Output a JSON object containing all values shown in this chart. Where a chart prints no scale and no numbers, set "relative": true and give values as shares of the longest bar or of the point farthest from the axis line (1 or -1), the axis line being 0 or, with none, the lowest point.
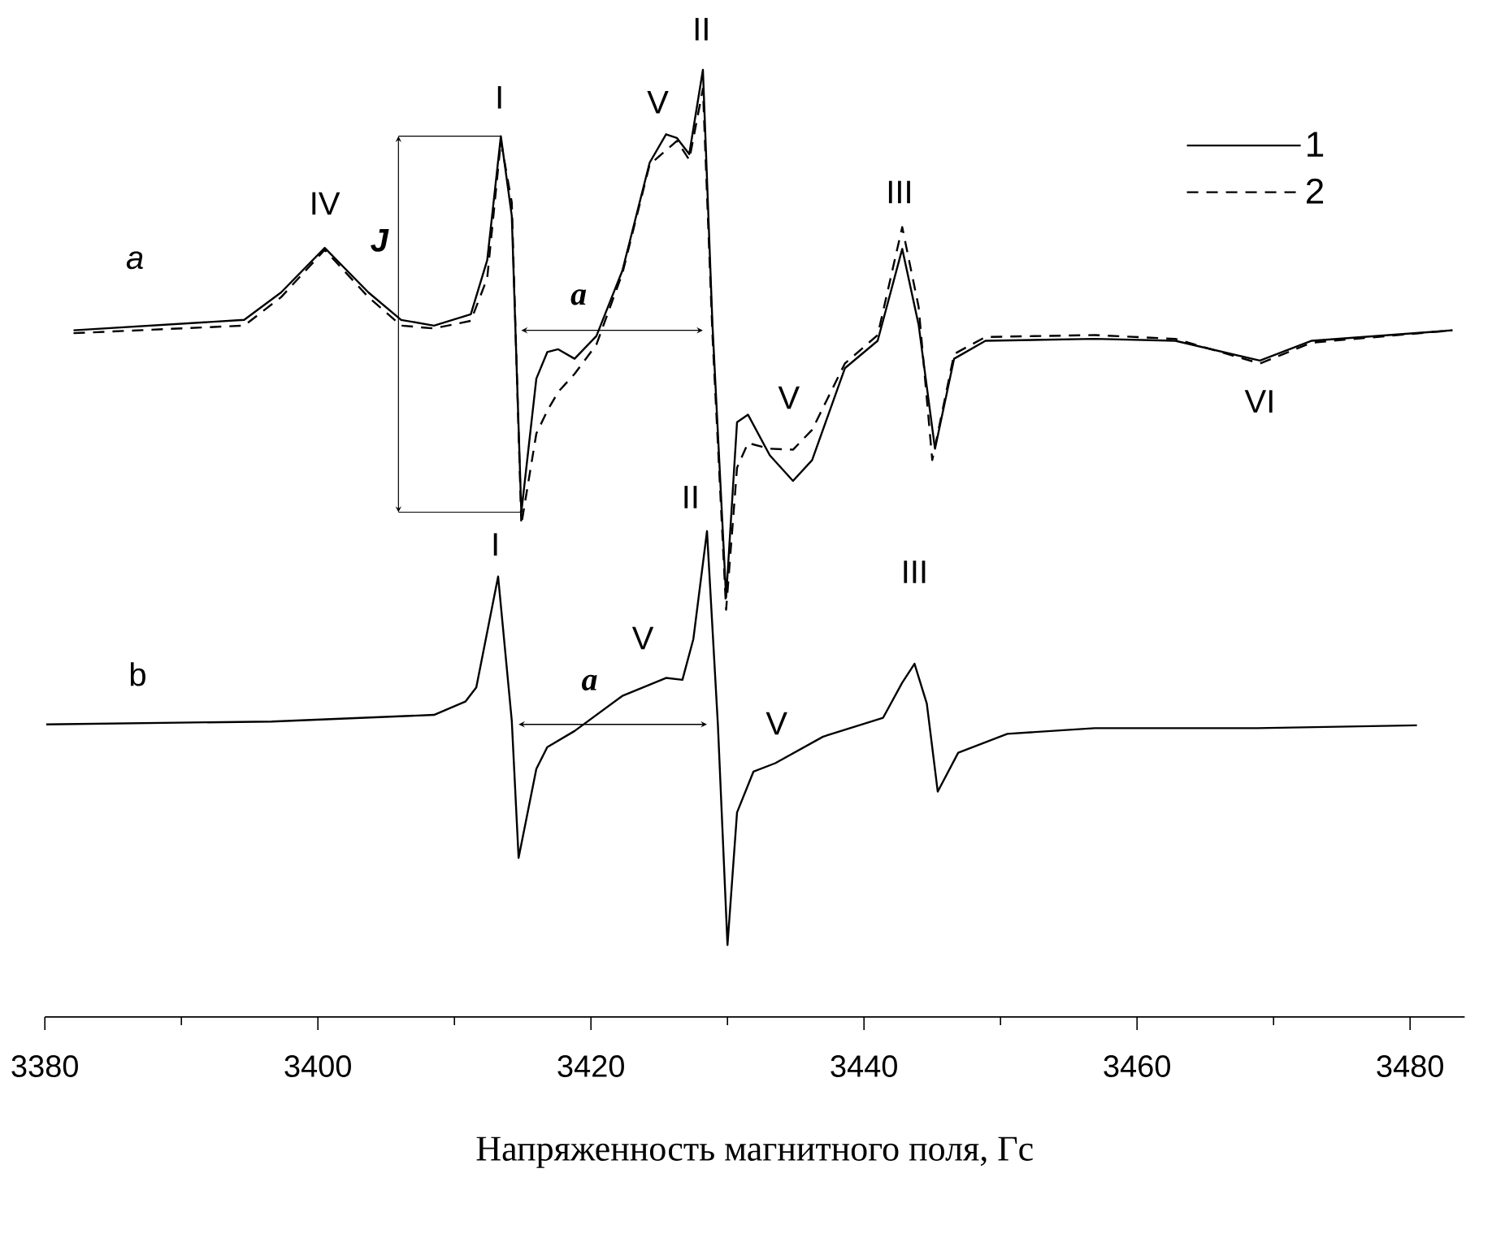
{
  "chart_data": {
    "type": "line",
    "relative": true,
    "xlabel": "Напряженность магнитного поля, Гс",
    "xlim": [
      3380,
      3484
    ],
    "xticks": [
      3380,
      {
        "value": 3390,
        "label": null
      },
      3400,
      {
        "value": 3410,
        "label": null
      },
      3420,
      {
        "value": 3430,
        "label": null
      },
      3440,
      {
        "value": 3450,
        "label": null
      },
      3460,
      {
        "value": 3470,
        "label": null
      },
      3480
    ],
    "legend": "top right",
    "series": [
      {
        "name": "1",
        "color": "#000000",
        "line_style": "solid",
        "x": [
          3382.1,
          3394.6,
          3397.3,
          3400.5,
          3403.7,
          3406.1,
          3408.5,
          3411.2,
          3412.4,
          3413.4,
          3414.2,
          3414.9,
          3416.0,
          3416.8,
          3417.6,
          3418.8,
          3420.4,
          3422.3,
          3424.3,
          3425.5,
          3426.3,
          3427.2,
          3428.2,
          3428.9,
          3429.9,
          3430.7,
          3431.5,
          3433.1,
          3434.8,
          3436.2,
          3438.6,
          3441.0,
          3442.8,
          3444.0,
          3445.2,
          3446.6,
          3448.9,
          3456.9,
          3462.8,
          3469.0,
          3472.8,
          3483.1
        ],
        "values": [
          0.725,
          0.736,
          0.765,
          0.812,
          0.765,
          0.736,
          0.73,
          0.742,
          0.799,
          0.93,
          0.846,
          0.533,
          0.674,
          0.702,
          0.705,
          0.695,
          0.719,
          0.788,
          0.902,
          0.932,
          0.928,
          0.911,
          1.0,
          0.731,
          0.443,
          0.628,
          0.636,
          0.593,
          0.566,
          0.588,
          0.685,
          0.714,
          0.811,
          0.731,
          0.6,
          0.695,
          0.714,
          0.716,
          0.714,
          0.693,
          0.714,
          0.725
        ]
      },
      {
        "name": "2",
        "color": "#000000",
        "line_style": "dashed",
        "x": [
          3382.1,
          3394.6,
          3397.3,
          3400.5,
          3403.7,
          3406.1,
          3408.5,
          3411.2,
          3412.4,
          3413.4,
          3414.2,
          3414.9,
          3416.0,
          3416.8,
          3417.6,
          3418.8,
          3420.4,
          3422.3,
          3424.3,
          3425.5,
          3426.3,
          3427.2,
          3428.2,
          3428.9,
          3429.9,
          3430.7,
          3431.5,
          3433.1,
          3434.8,
          3436.2,
          3438.6,
          3441.0,
          3442.8,
          3444.0,
          3445.0,
          3446.6,
          3448.9,
          3456.9,
          3462.8,
          3469.0,
          3472.8,
          3483.1
        ],
        "values": [
          0.722,
          0.73,
          0.76,
          0.81,
          0.76,
          0.73,
          0.727,
          0.735,
          0.78,
          0.925,
          0.86,
          0.52,
          0.616,
          0.64,
          0.66,
          0.679,
          0.71,
          0.785,
          0.9,
          0.915,
          0.925,
          0.905,
          0.98,
          0.72,
          0.43,
          0.58,
          0.606,
          0.6,
          0.599,
          0.62,
          0.69,
          0.72,
          0.834,
          0.75,
          0.588,
          0.7,
          0.718,
          0.72,
          0.716,
          0.69,
          0.712,
          0.725
        ]
      },
      {
        "color": "#000000",
        "line_style": "solid",
        "x": [
          3380.1,
          3396.6,
          3408.5,
          3410.8,
          3411.6,
          3413.2,
          3414.2,
          3414.7,
          3416.0,
          3416.8,
          3418.8,
          3422.3,
          3425.5,
          3426.7,
          3427.5,
          3428.5,
          3429.3,
          3430.0,
          3430.7,
          3431.9,
          3433.5,
          3437.0,
          3441.4,
          3442.8,
          3443.7,
          3444.6,
          3445.4,
          3446.9,
          3450.5,
          3456.9,
          3468.8,
          3480.5
        ],
        "values": [
          0.309,
          0.312,
          0.319,
          0.333,
          0.348,
          0.465,
          0.313,
          0.168,
          0.262,
          0.285,
          0.302,
          0.339,
          0.358,
          0.356,
          0.399,
          0.513,
          0.308,
          0.076,
          0.216,
          0.259,
          0.268,
          0.296,
          0.316,
          0.353,
          0.373,
          0.331,
          0.238,
          0.279,
          0.299,
          0.305,
          0.305,
          0.308
        ]
      }
    ],
    "annotations": [
      "a",
      "IV",
      "J",
      "I",
      "V",
      "II",
      "a",
      "III",
      "V",
      "VI",
      "b",
      "I",
      "V",
      "II",
      "a",
      "III",
      "V"
    ]
  }
}
